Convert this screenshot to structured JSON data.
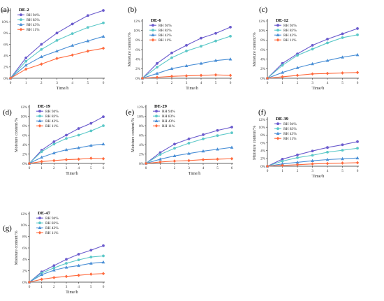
{
  "chart_data": [
    {
      "id": "DE-2",
      "panel_label": "(a)",
      "title": "DE-2",
      "type": "line",
      "xlabel": "Time/h",
      "ylabel": "Moisture content/%",
      "x": [
        0,
        1,
        2,
        3,
        4,
        5,
        6
      ],
      "xlim": [
        0,
        6
      ],
      "ylim": [
        0,
        12
      ],
      "yticks": [
        "0%",
        "2%",
        "4%",
        "6%",
        "8%",
        "10%",
        "12%"
      ],
      "legend": "top-left",
      "series": [
        {
          "name": "RH 94%",
          "color": "#6a5acd",
          "marker": "circle",
          "values": [
            0,
            3.6,
            6.0,
            8.0,
            9.6,
            11.1,
            12.0
          ]
        },
        {
          "name": "RH 83%",
          "color": "#5bc8c8",
          "marker": "circle",
          "values": [
            0,
            3.0,
            5.1,
            6.7,
            7.9,
            9.0,
            9.8
          ]
        },
        {
          "name": "RH 43%",
          "color": "#4a8fd6",
          "marker": "triangle",
          "values": [
            0,
            2.3,
            3.8,
            4.8,
            5.8,
            6.6,
            7.4
          ]
        },
        {
          "name": "RH 11%",
          "color": "#ff6a3d",
          "marker": "diamond",
          "values": [
            0,
            1.6,
            2.5,
            3.5,
            4.1,
            4.8,
            5.3
          ]
        }
      ]
    },
    {
      "id": "DE-6",
      "panel_label": "(b)",
      "title": "DE-6",
      "type": "line",
      "xlabel": "Time/h",
      "ylabel": "Moisture content/%",
      "x": [
        0,
        1,
        2,
        3,
        4,
        5,
        6
      ],
      "xlim": [
        0,
        6
      ],
      "ylim": [
        0,
        12
      ],
      "yticks": [
        "0%",
        "2%",
        "4%",
        "6%",
        "8%",
        "10%",
        "12%"
      ],
      "legend": "top-left",
      "series": [
        {
          "name": "RH 94%",
          "color": "#6a5acd",
          "marker": "circle",
          "values": [
            0,
            3.1,
            5.3,
            6.9,
            8.4,
            9.4,
            10.7
          ]
        },
        {
          "name": "RH 83%",
          "color": "#5bc8c8",
          "marker": "circle",
          "values": [
            0,
            2.3,
            4.3,
            5.7,
            6.7,
            7.8,
            8.8
          ]
        },
        {
          "name": "RH 43%",
          "color": "#4a8fd6",
          "marker": "triangle",
          "values": [
            0,
            1.0,
            2.0,
            2.6,
            3.1,
            3.7,
            4.0
          ]
        },
        {
          "name": "RH 11%",
          "color": "#ff6a3d",
          "marker": "diamond",
          "values": [
            0,
            0.2,
            0.4,
            0.5,
            0.6,
            0.7,
            0.6
          ]
        }
      ]
    },
    {
      "id": "DE-12",
      "panel_label": "(c)",
      "title": "DE-12",
      "type": "line",
      "xlabel": "Time/h",
      "ylabel": "Moisture content/%",
      "x": [
        0,
        1,
        2,
        3,
        4,
        5,
        6
      ],
      "xlim": [
        0,
        6
      ],
      "ylim": [
        0,
        12
      ],
      "yticks": [
        "0%",
        "2%",
        "4%",
        "6%",
        "8%",
        "10%",
        "12%"
      ],
      "legend": "top-left",
      "series": [
        {
          "name": "RH 94%",
          "color": "#6a5acd",
          "marker": "circle",
          "values": [
            0,
            3.1,
            5.1,
            6.9,
            8.2,
            9.3,
            10.4
          ]
        },
        {
          "name": "RH 83%",
          "color": "#5bc8c8",
          "marker": "circle",
          "values": [
            0,
            2.7,
            4.8,
            6.1,
            7.4,
            8.5,
            9.1
          ]
        },
        {
          "name": "RH 43%",
          "color": "#4a8fd6",
          "marker": "triangle",
          "values": [
            0,
            1.2,
            2.2,
            3.0,
            3.7,
            4.4,
            4.9
          ]
        },
        {
          "name": "RH 11%",
          "color": "#ff6a3d",
          "marker": "diamond",
          "values": [
            0,
            0.3,
            0.6,
            0.9,
            1.0,
            1.1,
            1.2
          ]
        }
      ]
    },
    {
      "id": "DE-19",
      "panel_label": "(d)",
      "title": "DE-19",
      "type": "line",
      "xlabel": "Time/h",
      "ylabel": "Moisture content/%",
      "x": [
        0,
        1,
        2,
        3,
        4,
        5,
        6
      ],
      "xlim": [
        0,
        6
      ],
      "ylim": [
        0,
        12
      ],
      "yticks": [
        "0%",
        "2%",
        "4%",
        "6%",
        "8%",
        "10%",
        "12%"
      ],
      "legend": "top-left",
      "series": [
        {
          "name": "RH 94%",
          "color": "#6a5acd",
          "marker": "circle",
          "values": [
            0,
            2.8,
            4.6,
            6.0,
            7.4,
            8.5,
            9.9
          ]
        },
        {
          "name": "RH 83%",
          "color": "#5bc8c8",
          "marker": "circle",
          "values": [
            0,
            2.5,
            4.1,
            5.3,
            6.0,
            6.9,
            8.0
          ]
        },
        {
          "name": "RH 43%",
          "color": "#4a8fd6",
          "marker": "triangle",
          "values": [
            0,
            1.3,
            2.2,
            2.9,
            3.3,
            3.8,
            4.1
          ]
        },
        {
          "name": "RH 11%",
          "color": "#ff6a3d",
          "marker": "diamond",
          "values": [
            0,
            0.4,
            0.6,
            0.8,
            0.9,
            1.1,
            1.0
          ]
        }
      ]
    },
    {
      "id": "DE-29",
      "panel_label": "(e)",
      "title": "DE-29",
      "type": "line",
      "xlabel": "Time/h",
      "ylabel": "Moisture content/%",
      "x": [
        0,
        1,
        2,
        3,
        4,
        5,
        6
      ],
      "xlim": [
        0,
        6
      ],
      "ylim": [
        0,
        12
      ],
      "yticks": [
        "0%",
        "2%",
        "4%",
        "6%",
        "8%",
        "10%",
        "12%"
      ],
      "legend": "top-left",
      "series": [
        {
          "name": "RH 94%",
          "color": "#6a5acd",
          "marker": "circle",
          "values": [
            0,
            2.3,
            4.1,
            5.2,
            6.1,
            7.0,
            7.7
          ]
        },
        {
          "name": "RH 83%",
          "color": "#5bc8c8",
          "marker": "circle",
          "values": [
            0,
            1.9,
            3.2,
            4.3,
            5.2,
            5.9,
            6.5
          ]
        },
        {
          "name": "RH 43%",
          "color": "#4a8fd6",
          "marker": "triangle",
          "values": [
            0,
            0.9,
            1.6,
            2.1,
            2.6,
            3.0,
            3.4
          ]
        },
        {
          "name": "RH 11%",
          "color": "#ff6a3d",
          "marker": "diamond",
          "values": [
            0,
            0.3,
            0.5,
            0.6,
            0.8,
            0.9,
            1.0
          ]
        }
      ]
    },
    {
      "id": "DE-39",
      "panel_label": "(f)",
      "title": "DE-39",
      "type": "line",
      "xlabel": "Time/h",
      "ylabel": "Moisture content/%",
      "x": [
        0,
        1,
        2,
        3,
        4,
        5,
        6
      ],
      "xlim": [
        0,
        6
      ],
      "ylim": [
        0,
        12
      ],
      "yticks": [
        "0%",
        "2%",
        "4%",
        "6%",
        "8%",
        "10%",
        "12%"
      ],
      "legend": "top-left",
      "series": [
        {
          "name": "RH 94%",
          "color": "#6a5acd",
          "marker": "circle",
          "values": [
            0,
            1.8,
            2.9,
            3.9,
            4.8,
            5.5,
            6.3
          ]
        },
        {
          "name": "RH 83%",
          "color": "#5bc8c8",
          "marker": "circle",
          "values": [
            0,
            1.3,
            2.2,
            2.8,
            3.6,
            4.1,
            4.6
          ]
        },
        {
          "name": "RH 43%",
          "color": "#4a8fd6",
          "marker": "triangle",
          "values": [
            0,
            0.6,
            1.0,
            1.4,
            1.7,
            1.9,
            2.1
          ]
        },
        {
          "name": "RH 11%",
          "color": "#ff6a3d",
          "marker": "diamond",
          "values": [
            0,
            0.2,
            0.4,
            0.6,
            0.7,
            0.8,
            0.9
          ]
        }
      ]
    },
    {
      "id": "DE-47",
      "panel_label": "(g)",
      "title": "DE-47",
      "type": "line",
      "xlabel": "Time/h",
      "ylabel": "Moisture content/%",
      "x": [
        0,
        1,
        2,
        3,
        4,
        5,
        6
      ],
      "xlim": [
        0,
        6
      ],
      "ylim": [
        0,
        12
      ],
      "yticks": [
        "0%",
        "2%",
        "4%",
        "6%",
        "8%",
        "10%",
        "12%"
      ],
      "legend": "top-left",
      "series": [
        {
          "name": "RH 94%",
          "color": "#6a5acd",
          "marker": "circle",
          "values": [
            0,
            1.8,
            2.9,
            4.0,
            4.9,
            5.6,
            6.4
          ]
        },
        {
          "name": "RH 83%",
          "color": "#5bc8c8",
          "marker": "circle",
          "values": [
            0,
            1.6,
            2.5,
            3.3,
            3.9,
            4.4,
            4.6
          ]
        },
        {
          "name": "RH 43%",
          "color": "#4a8fd6",
          "marker": "triangle",
          "values": [
            0,
            1.3,
            2.1,
            2.6,
            2.9,
            3.3,
            3.5
          ]
        },
        {
          "name": "RH 11%",
          "color": "#ff6a3d",
          "marker": "diamond",
          "values": [
            0,
            0.5,
            0.8,
            1.0,
            1.2,
            1.4,
            1.5
          ]
        }
      ]
    }
  ]
}
